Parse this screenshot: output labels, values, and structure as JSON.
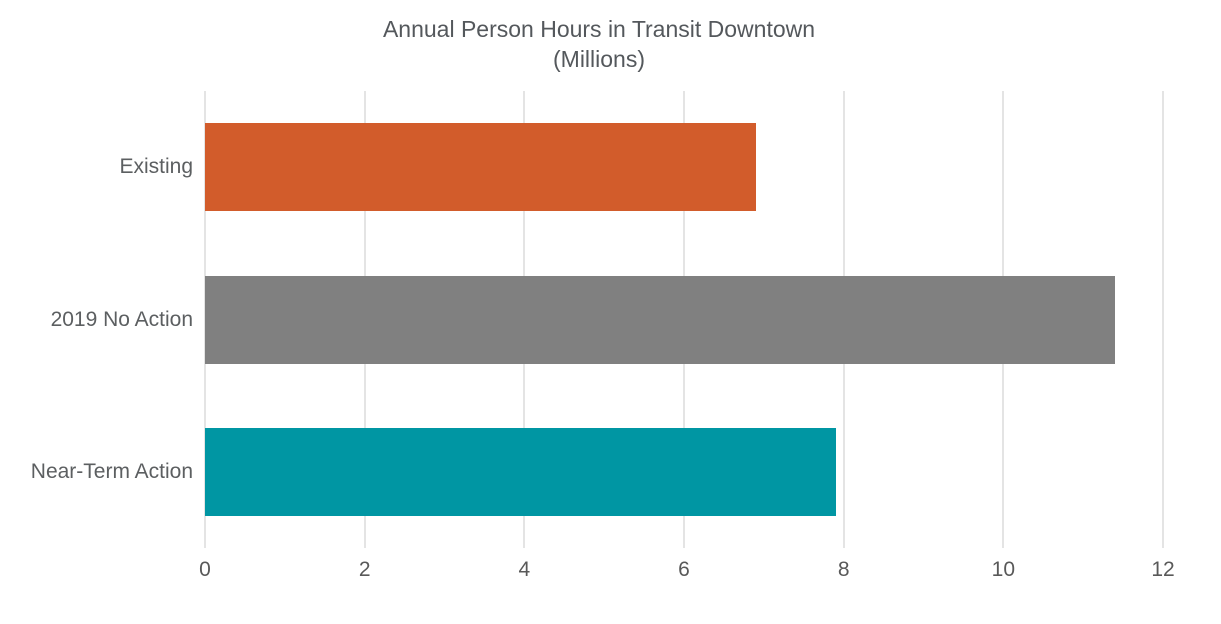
{
  "title": {
    "line1": "Annual Person Hours in Transit Downtown",
    "line2": "(Millions)"
  },
  "chart_data": {
    "type": "bar",
    "orientation": "horizontal",
    "title": "Annual Person Hours in Transit Downtown (Millions)",
    "categories": [
      "Existing",
      "2019 No Action",
      "Near-Term Action"
    ],
    "values": [
      6.9,
      11.4,
      7.9
    ],
    "bar_colors": [
      "#D25C2B",
      "#808080",
      "#0096A3"
    ],
    "xlabel": "",
    "ylabel": "",
    "xlim": [
      0,
      12
    ],
    "x_ticks": [
      0,
      2,
      4,
      6,
      8,
      10,
      12
    ],
    "grid": true,
    "gridline_color": "#E4E4E4",
    "text_color": "#595959",
    "legend": "none",
    "background": "#FFFFFF"
  }
}
